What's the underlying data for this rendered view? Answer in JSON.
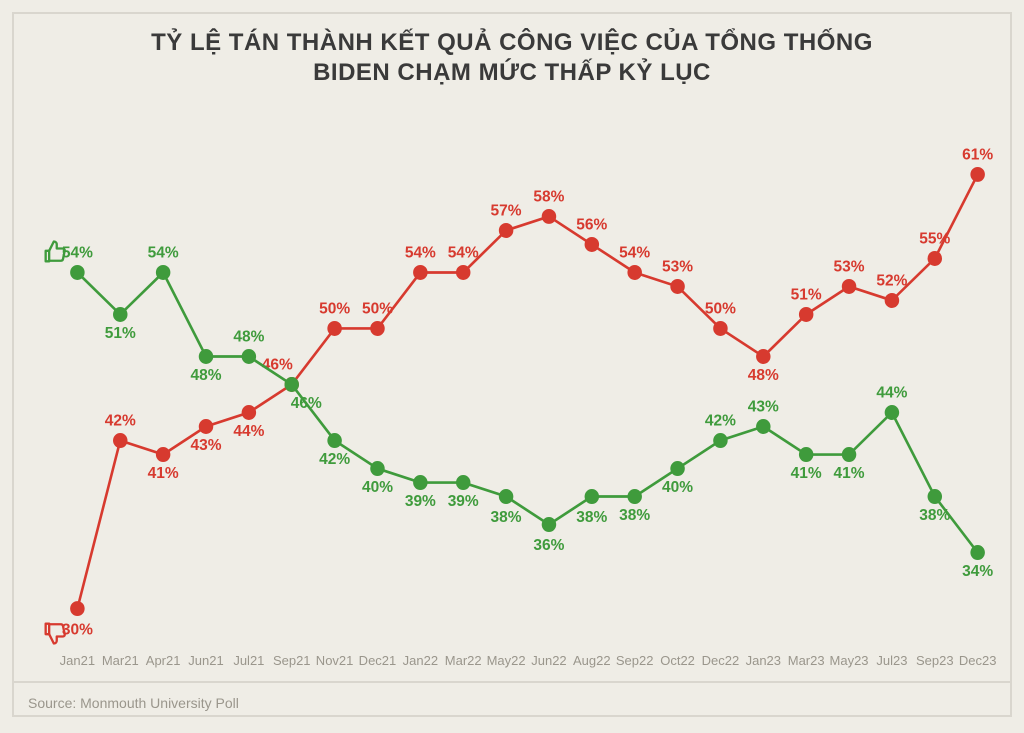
{
  "title_line1": "TỶ LỆ TÁN THÀNH KẾT QUẢ CÔNG VIỆC CỦA TỔNG THỐNG",
  "title_line2": "BIDEN CHẠM MỨC THẤP KỶ LỤC",
  "title_fontsize": 24,
  "source": "Source: Monmouth University Poll",
  "background_color": "#efede6",
  "border_color": "#d9d6ce",
  "text_muted_color": "#9a968c",
  "chart": {
    "type": "line",
    "x_labels": [
      "Jan21",
      "Mar21",
      "Apr21",
      "Jun21",
      "Jul21",
      "Sep21",
      "Nov21",
      "Dec21",
      "Jan22",
      "Mar22",
      "May22",
      "Jun22",
      "Aug22",
      "Sep22",
      "Oct22",
      "Dec22",
      "Jan23",
      "Mar23",
      "May23",
      "Jul23",
      "Sep23",
      "Dec23"
    ],
    "y_domain": [
      28,
      63
    ],
    "marker_radius": 7,
    "line_width": 2.5,
    "label_fontsize": 15,
    "approve": {
      "color": "#3f9b3c",
      "values": [
        54,
        51,
        54,
        48,
        48,
        46,
        42,
        40,
        39,
        39,
        38,
        36,
        38,
        38,
        40,
        42,
        43,
        41,
        41,
        44,
        38,
        34
      ],
      "label_dy": [
        -14,
        16,
        -14,
        16,
        -14,
        16,
        16,
        16,
        16,
        16,
        18,
        18,
        18,
        16,
        16,
        -14,
        -14,
        16,
        16,
        -14,
        16,
        16
      ],
      "label_dx": [
        0,
        0,
        0,
        0,
        0,
        14,
        0,
        0,
        0,
        0,
        0,
        0,
        0,
        0,
        0,
        0,
        0,
        0,
        0,
        0,
        0,
        0
      ],
      "icon": "thumbs-up"
    },
    "disapprove": {
      "color": "#d73a2f",
      "values": [
        30,
        42,
        41,
        43,
        44,
        46,
        50,
        50,
        54,
        54,
        57,
        58,
        56,
        54,
        53,
        50,
        48,
        51,
        53,
        52,
        55,
        61
      ],
      "label_dy": [
        18,
        -14,
        16,
        16,
        16,
        -14,
        -14,
        -14,
        -14,
        -14,
        -14,
        -14,
        -14,
        -14,
        -14,
        -14,
        16,
        -14,
        -14,
        -14,
        -14,
        -14
      ],
      "label_dx": [
        0,
        0,
        0,
        0,
        0,
        -14,
        0,
        0,
        0,
        0,
        0,
        0,
        0,
        0,
        0,
        0,
        0,
        0,
        0,
        0,
        0,
        0
      ],
      "icon": "thumbs-down"
    }
  }
}
